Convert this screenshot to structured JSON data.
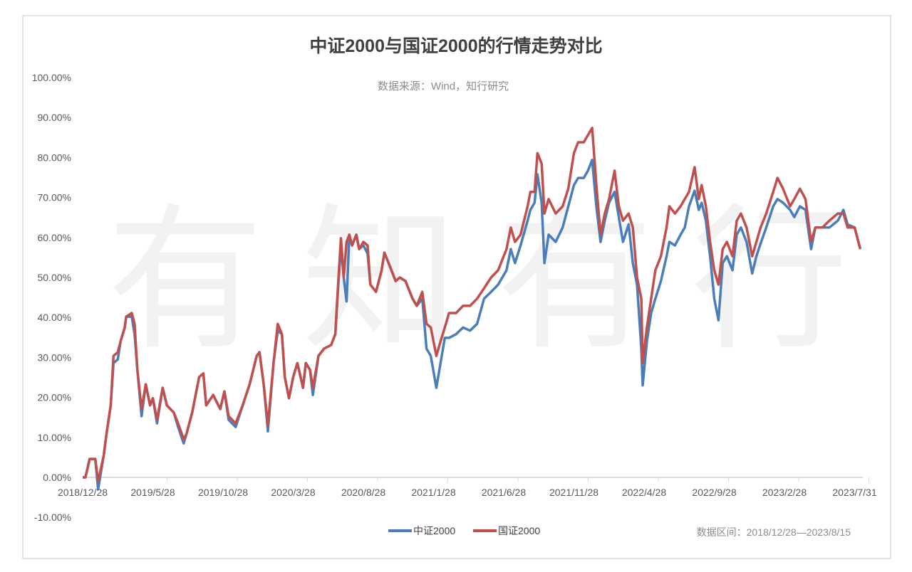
{
  "chart_data": {
    "type": "line",
    "title": "中证2000与国证2000的行情走势对比",
    "subtitle": "数据来源：Wind，知行研究",
    "watermark": "有知有行",
    "footnote": "数据区间：2018/12/28—2023/8/15",
    "xlabel": "",
    "ylabel": "",
    "x_unit": "months since 2018/12/28",
    "xlim": [
      0,
      55.6
    ],
    "ylim": [
      -10,
      100
    ],
    "grid": false,
    "legend_position": "bottom",
    "y_ticks": [
      "-10.00%",
      "0.00%",
      "10.00%",
      "20.00%",
      "30.00%",
      "40.00%",
      "50.00%",
      "60.00%",
      "70.00%",
      "80.00%",
      "90.00%",
      "100.00%"
    ],
    "y_tick_values": [
      -10,
      0,
      10,
      20,
      30,
      40,
      50,
      60,
      70,
      80,
      90,
      100
    ],
    "x_ticks": [
      "2018/12/28",
      "2019/5/28",
      "2019/10/28",
      "2020/3/28",
      "2020/8/28",
      "2021/1/28",
      "2021/6/28",
      "2021/11/28",
      "2022/4/28",
      "2022/9/28",
      "2023/2/28",
      "2023/7/31"
    ],
    "x_tick_values": [
      0,
      5,
      10,
      15,
      20,
      25,
      30,
      35,
      40,
      45,
      50,
      55
    ],
    "x": [
      0,
      0.2,
      0.5,
      0.9,
      1.1,
      1.5,
      1.7,
      2.0,
      2.2,
      2.5,
      2.7,
      3.0,
      3.1,
      3.5,
      3.7,
      3.9,
      4.2,
      4.5,
      4.8,
      5.0,
      5.3,
      5.7,
      6.0,
      6.5,
      6.8,
      7.2,
      7.4,
      7.8,
      8.3,
      8.6,
      8.8,
      9.3,
      9.8,
      10.1,
      10.4,
      10.9,
      11.4,
      11.9,
      12.4,
      12.6,
      12.9,
      13.2,
      13.6,
      13.9,
      14.2,
      14.4,
      14.7,
      15.0,
      15.3,
      15.7,
      15.9,
      16.2,
      16.4,
      16.8,
      17.2,
      17.7,
      18.0,
      18.2,
      18.4,
      18.6,
      18.8,
      19.0,
      19.2,
      19.5,
      19.7,
      20.0,
      20.3,
      20.5,
      20.9,
      21.3,
      21.5,
      21.9,
      22.3,
      22.6,
      23.0,
      23.5,
      23.8,
      24.2,
      24.5,
      24.8,
      25.2,
      25.5,
      25.8,
      26.1,
      26.6,
      27.1,
      27.6,
      28.1,
      28.6,
      29.1,
      29.6,
      30.2,
      30.5,
      30.8,
      31.2,
      31.7,
      31.9,
      32.2,
      32.4,
      32.7,
      32.9,
      33.2,
      33.7,
      34.2,
      34.6,
      35.0,
      35.3,
      35.7,
      36.0,
      36.3,
      36.6,
      36.9,
      37.2,
      37.5,
      37.9,
      38.2,
      38.5,
      38.9,
      39.2,
      39.5,
      39.8,
      39.9,
      40.2,
      40.5,
      40.8,
      41.2,
      41.6,
      41.8,
      42.2,
      42.6,
      42.9,
      43.2,
      43.6,
      43.9,
      44.1,
      44.4,
      44.7,
      45.0,
      45.3,
      45.6,
      45.9,
      46.3,
      46.6,
      46.9,
      47.3,
      47.7,
      48.0,
      48.3,
      48.7,
      49.2,
      49.5,
      49.9,
      50.4,
      50.7,
      51.1,
      51.5,
      51.9,
      52.2,
      52.7,
      53.2,
      53.8,
      54.2,
      54.5,
      55.0,
      55.4
    ],
    "series": [
      {
        "name": "中证2000",
        "color": "#4a7ebb",
        "values": [
          0,
          0,
          4.6,
          4.6,
          -3.0,
          5.5,
          10.9,
          18.0,
          28.6,
          29.5,
          34.0,
          37.5,
          40.2,
          40.2,
          35.8,
          26.9,
          15.3,
          23.3,
          18.0,
          19.8,
          13.5,
          22.4,
          18.0,
          16.2,
          12.6,
          8.5,
          10.9,
          16.2,
          25.1,
          26.0,
          18.0,
          20.6,
          17.1,
          21.5,
          14.4,
          12.6,
          18.0,
          23.3,
          30.4,
          31.3,
          23.3,
          11.5,
          28.6,
          36.7,
          35.8,
          25.1,
          19.8,
          25.1,
          28.6,
          22.4,
          28.6,
          26.9,
          20.6,
          30.4,
          32.2,
          33.1,
          35.8,
          47.3,
          58.0,
          50.0,
          44.0,
          60.7,
          58.0,
          60.7,
          57.1,
          58.0,
          56.0,
          48.2,
          46.4,
          51.8,
          56.2,
          52.7,
          49.1,
          50.0,
          49.1,
          44.7,
          42.9,
          44.7,
          32.2,
          30.4,
          22.4,
          28.6,
          34.9,
          34.9,
          35.8,
          37.5,
          36.7,
          38.4,
          44.7,
          46.4,
          48.2,
          51.8,
          57.1,
          53.6,
          58.0,
          64.2,
          66.9,
          68.7,
          75.8,
          68.7,
          53.6,
          60.7,
          58.9,
          62.5,
          67.8,
          73.1,
          74.9,
          74.9,
          76.7,
          79.4,
          67.8,
          58.9,
          64.2,
          68.7,
          71.4,
          65.1,
          58.9,
          63.3,
          53.6,
          48.2,
          32.2,
          23.0,
          34.0,
          41.1,
          44.7,
          49.1,
          55.3,
          58.9,
          58.0,
          60.7,
          62.5,
          67.8,
          71.7,
          66.9,
          68.7,
          64.2,
          55.3,
          44.7,
          39.3,
          53.6,
          55.3,
          51.8,
          60.7,
          62.5,
          58.9,
          51.0,
          55.3,
          58.5,
          62.5,
          67.8,
          69.6,
          68.7,
          66.9,
          65.1,
          67.8,
          66.9,
          57.1,
          62.5,
          62.5,
          62.5,
          64.2,
          66.9,
          63.3,
          62.5,
          57.1
        ]
      },
      {
        "name": "国证2000",
        "color": "#c0504d",
        "values": [
          0,
          0,
          4.6,
          4.6,
          -1.0,
          5.5,
          10.9,
          18.0,
          30.4,
          31.3,
          34.0,
          37.5,
          40.2,
          41.1,
          38.4,
          26.9,
          17.1,
          23.3,
          18.0,
          19.8,
          14.4,
          22.4,
          18.0,
          16.2,
          13.5,
          9.5,
          10.9,
          16.2,
          25.1,
          26.0,
          18.0,
          20.6,
          17.1,
          21.5,
          15.3,
          13.5,
          18.0,
          23.3,
          30.4,
          31.3,
          23.3,
          13.0,
          28.6,
          38.4,
          35.8,
          25.1,
          19.8,
          25.1,
          28.6,
          22.4,
          28.6,
          26.9,
          22.4,
          30.4,
          32.2,
          33.1,
          35.8,
          48.2,
          59.8,
          50.0,
          58.9,
          60.7,
          58.0,
          60.7,
          57.1,
          58.9,
          58.0,
          48.2,
          46.4,
          51.8,
          56.2,
          52.7,
          49.1,
          50.0,
          49.1,
          44.7,
          42.9,
          46.4,
          38.4,
          37.5,
          30.4,
          34.0,
          37.5,
          41.1,
          41.1,
          42.9,
          42.9,
          44.7,
          47.3,
          50.0,
          51.8,
          57.1,
          62.5,
          58.9,
          60.7,
          67.8,
          71.4,
          71.4,
          81.1,
          78.5,
          66.0,
          69.6,
          66.0,
          67.8,
          72.2,
          81.1,
          83.8,
          83.8,
          85.6,
          87.4,
          73.1,
          60.7,
          66.0,
          69.6,
          76.7,
          67.8,
          64.2,
          66.0,
          62.5,
          50.0,
          44.7,
          28.6,
          37.5,
          44.7,
          51.8,
          55.3,
          62.5,
          67.8,
          66.0,
          67.8,
          69.6,
          71.4,
          77.6,
          69.6,
          73.1,
          67.8,
          58.9,
          51.8,
          48.2,
          57.1,
          58.9,
          55.3,
          64.2,
          66.0,
          62.5,
          55.3,
          58.9,
          62.5,
          66.0,
          71.4,
          74.9,
          72.2,
          67.8,
          69.6,
          72.2,
          69.6,
          58.9,
          62.5,
          62.5,
          64.2,
          66.0,
          66.0,
          62.5,
          62.5,
          57.1
        ]
      }
    ]
  }
}
